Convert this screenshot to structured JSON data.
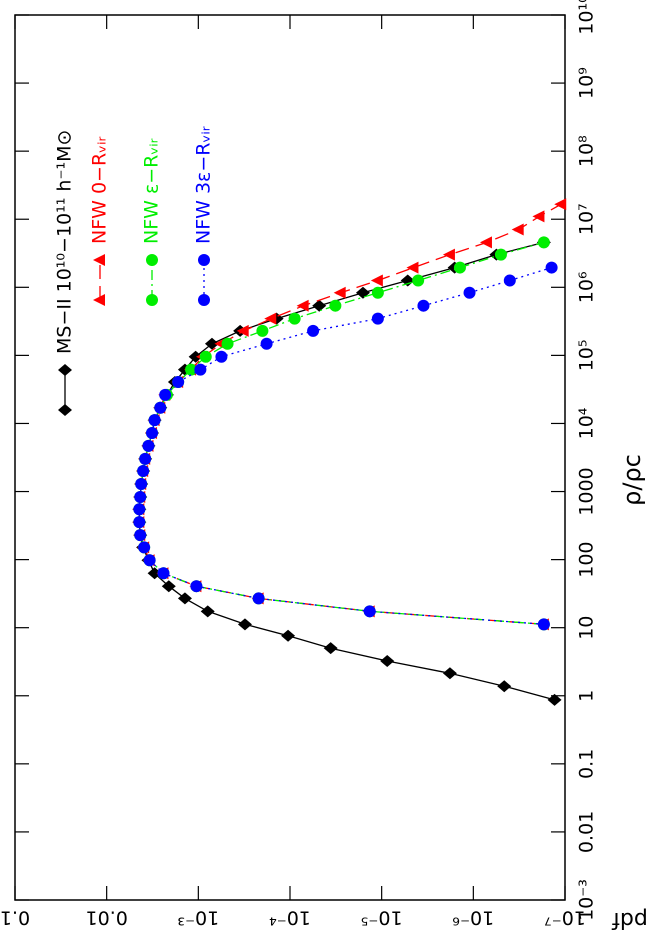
{
  "chart_data": {
    "type": "line",
    "x_label": "ρ/ρc",
    "y_label": "pdf",
    "log_x": true,
    "log_y": true,
    "grid": false,
    "legend": "upper right",
    "xlim": [
      0.001,
      10000000000
    ],
    "ylim": [
      1e-07,
      0.1
    ],
    "xticks": [
      {
        "value": 0.001,
        "label": "10⁻³"
      },
      0.01,
      0.1,
      1,
      10,
      100,
      1000,
      {
        "value": 10000,
        "label": "10⁴"
      },
      {
        "value": 100000,
        "label": "10⁵"
      },
      {
        "value": 1000000,
        "label": "10⁶"
      },
      {
        "value": 10000000,
        "label": "10⁷"
      },
      {
        "value": 100000000,
        "label": "10⁸"
      },
      {
        "value": 1000000000,
        "label": "10⁹"
      },
      {
        "value": 10000000000,
        "label": "10¹⁰"
      }
    ],
    "yticks": [
      {
        "value": 1e-07,
        "label": "10⁻⁷"
      },
      {
        "value": 1e-06,
        "label": "10⁻⁶"
      },
      {
        "value": 1e-05,
        "label": "10⁻⁵"
      },
      {
        "value": 0.0001,
        "label": "10⁻⁴"
      },
      {
        "value": 0.001,
        "label": "10⁻³"
      },
      0.01,
      0.1
    ],
    "series": [
      {
        "name": "MS−II 10¹⁰−10¹¹ h⁻¹M⊙",
        "color": "#000000",
        "marker": "diamond",
        "linestyle": "solid",
        "x": [
          0.87,
          1.38,
          2.14,
          3.24,
          5.0,
          7.6,
          11.2,
          17.4,
          26.9,
          40.7,
          63,
          98,
          151,
          229,
          355,
          550,
          832,
          1290,
          2000,
          3020,
          4680,
          7240,
          11200,
          17000,
          26300,
          40700,
          61700,
          95500,
          148000,
          229000,
          347000,
          537000,
          832000,
          1260000,
          1950000,
          3020000,
          4570000
        ],
        "values": [
          1.3e-07,
          4.6e-07,
          1.8e-06,
          8.7e-06,
          3.6e-05,
          0.000105,
          0.00031,
          0.00079,
          0.0014,
          0.0021,
          0.003,
          0.0035,
          0.004,
          0.0043,
          0.0044,
          0.0044,
          0.0043,
          0.0042,
          0.004,
          0.0038,
          0.0035,
          0.0032,
          0.003,
          0.0026,
          0.0022,
          0.0018,
          0.0014,
          0.00107,
          0.00071,
          0.00035,
          0.00014,
          4.8e-05,
          1.6e-05,
          5.2e-06,
          1.6e-06,
          5.6e-07,
          1.7e-07
        ]
      },
      {
        "name": "NFW   0−Rᵥᵢᵣ",
        "color": "#ff0000",
        "marker": "triangle",
        "linestyle": "dashed",
        "x": [
          11.2,
          17.4,
          26.9,
          40.7,
          63,
          98,
          151,
          229,
          355,
          550,
          832,
          1290,
          2000,
          3020,
          4680,
          7240,
          11200,
          17000,
          26300,
          40700,
          61700,
          95500,
          148000,
          229000,
          347000,
          537000,
          832000,
          1260000,
          1950000,
          3020000,
          4570000,
          7080000,
          11000000,
          16600000
        ],
        "values": [
          1.7e-07,
          1.35e-05,
          0.00022,
          0.00105,
          0.0024,
          0.0034,
          0.0039,
          0.0043,
          0.0044,
          0.0044,
          0.0043,
          0.0042,
          0.004,
          0.0038,
          0.0035,
          0.0032,
          0.003,
          0.0026,
          0.0023,
          0.00166,
          0.0012,
          0.00089,
          0.00056,
          0.00032,
          0.00016,
          7.1e-05,
          2.8e-05,
          1.1e-05,
          4.5e-06,
          1.8e-06,
          7.1e-07,
          3.2e-07,
          1.9e-07,
          1.1e-07
        ]
      },
      {
        "name": "NFW   ε−Rᵥᵢᵣ",
        "color": "#00ee00",
        "marker": "circle",
        "linestyle": "dashdot",
        "x": [
          11.2,
          17.4,
          26.9,
          40.7,
          63,
          98,
          151,
          229,
          355,
          550,
          832,
          1290,
          2000,
          3020,
          4680,
          7240,
          11200,
          17000,
          26300,
          40700,
          61700,
          95500,
          148000,
          229000,
          347000,
          537000,
          832000,
          1260000,
          1950000,
          3020000,
          4570000
        ],
        "values": [
          1.7e-07,
          1.35e-05,
          0.00022,
          0.00105,
          0.0024,
          0.0034,
          0.0039,
          0.0043,
          0.0044,
          0.0044,
          0.0043,
          0.0042,
          0.004,
          0.0038,
          0.0035,
          0.0032,
          0.003,
          0.0026,
          0.0022,
          0.00166,
          0.0012,
          0.00083,
          0.00048,
          0.0002,
          8.9e-05,
          3.2e-05,
          1.1e-05,
          4e-06,
          1.4e-06,
          5e-07,
          1.7e-07
        ]
      },
      {
        "name": "NFW   3ε−Rᵥᵢᵣ",
        "color": "#0000ff",
        "marker": "circle",
        "linestyle": "dotted",
        "x": [
          11.2,
          17.4,
          26.9,
          40.7,
          63,
          98,
          151,
          229,
          355,
          550,
          832,
          1290,
          2000,
          3020,
          4680,
          7240,
          11200,
          17000,
          26300,
          40700,
          61700,
          95500,
          148000,
          229000,
          347000,
          537000,
          832000,
          1260000,
          1950000
        ],
        "values": [
          1.7e-07,
          1.35e-05,
          0.00022,
          0.00105,
          0.0024,
          0.0034,
          0.0039,
          0.0043,
          0.0044,
          0.0044,
          0.0043,
          0.0042,
          0.004,
          0.0038,
          0.0035,
          0.0032,
          0.003,
          0.0026,
          0.0023,
          0.00166,
          0.00095,
          0.00056,
          0.00018,
          5.6e-05,
          1.1e-05,
          3.5e-06,
          1.1e-06,
          4e-07,
          1.4e-07
        ]
      }
    ]
  }
}
